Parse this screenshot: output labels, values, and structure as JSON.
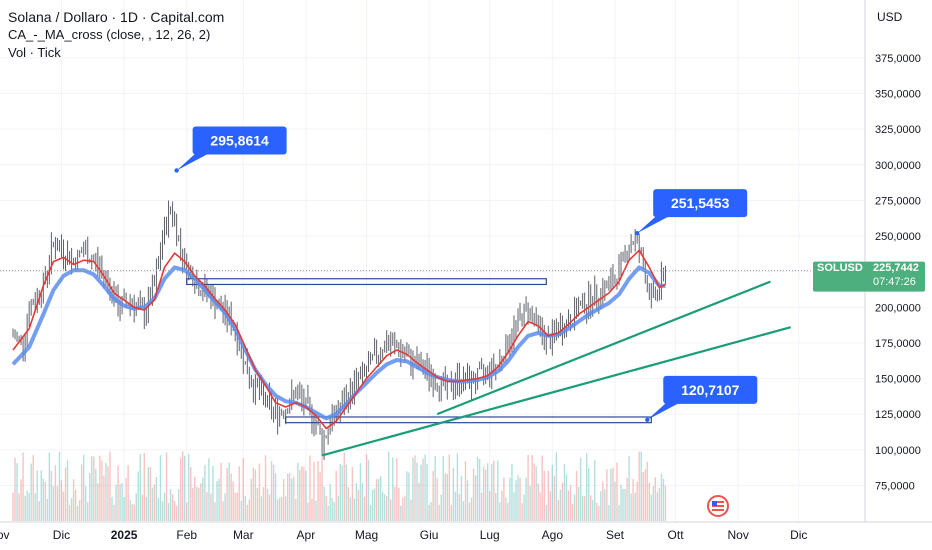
{
  "header": {
    "title": "Solana / Dollaro · 1D · Capital.com",
    "indicator": "CA_-_MA_cross (close, , 12, 26, 2)",
    "volume": "Vol · Tick",
    "currency": "USD"
  },
  "price_badge": {
    "symbol": "SOLUSD",
    "price": "225,7442",
    "countdown": "07:47:26"
  },
  "colors": {
    "up": "#26a69a",
    "down": "#ef5350",
    "fast_ma": "#e53935",
    "slow_ma": "#5b8def",
    "trend": "#1b9e77",
    "callout": "#2962ff",
    "zone": "#2a4a9a",
    "badge": "#4caf7d"
  },
  "chart_data": {
    "type": "line",
    "title": "Solana / Dollaro · 1D · Capital.com",
    "ylim": [
      50000,
      400000
    ],
    "y_ticks": [
      75000,
      100000,
      125000,
      150000,
      175000,
      200000,
      225000,
      250000,
      275000,
      300000,
      325000,
      350000,
      375000
    ],
    "y_tick_labels": [
      "75,0000",
      "100,0000",
      "125,0000",
      "150,0000",
      "175,0000",
      "200,0000",
      "225,0000",
      "250,0000",
      "275,0000",
      "300,0000",
      "325,0000",
      "350,0000",
      "375,0000"
    ],
    "x_tick_labels": [
      {
        "label": "Nov",
        "day": -7
      },
      {
        "label": "Dic",
        "day": 24
      },
      {
        "label": "2025",
        "day": 55
      },
      {
        "label": "Feb",
        "day": 86
      },
      {
        "label": "Mar",
        "day": 114
      },
      {
        "label": "Apr",
        "day": 145
      },
      {
        "label": "Mag",
        "day": 175
      },
      {
        "label": "Giu",
        "day": 206
      },
      {
        "label": "Lug",
        "day": 236
      },
      {
        "label": "Ago",
        "day": 267
      },
      {
        "label": "Set",
        "day": 298
      },
      {
        "label": "Ott",
        "day": 328
      },
      {
        "label": "Nov",
        "day": 359
      },
      {
        "label": "Dic",
        "day": 389
      }
    ],
    "price_path": [
      [
        0,
        180000
      ],
      [
        5,
        175000
      ],
      [
        8,
        200000
      ],
      [
        15,
        215000
      ],
      [
        20,
        245000
      ],
      [
        25,
        240000
      ],
      [
        30,
        232000
      ],
      [
        35,
        240000
      ],
      [
        42,
        230000
      ],
      [
        48,
        215000
      ],
      [
        52,
        200000
      ],
      [
        58,
        205000
      ],
      [
        65,
        195000
      ],
      [
        70,
        215000
      ],
      [
        75,
        255000
      ],
      [
        78,
        270000
      ],
      [
        80,
        260000
      ],
      [
        85,
        230000
      ],
      [
        88,
        225000
      ],
      [
        92,
        215000
      ],
      [
        97,
        210000
      ],
      [
        102,
        200000
      ],
      [
        108,
        190000
      ],
      [
        112,
        175000
      ],
      [
        115,
        160000
      ],
      [
        118,
        148000
      ],
      [
        122,
        140000
      ],
      [
        126,
        132000
      ],
      [
        130,
        125000
      ],
      [
        135,
        130000
      ],
      [
        140,
        140000
      ],
      [
        145,
        130000
      ],
      [
        150,
        120000
      ],
      [
        153,
        105000
      ],
      [
        158,
        122000
      ],
      [
        165,
        135000
      ],
      [
        170,
        148000
      ],
      [
        175,
        155000
      ],
      [
        180,
        168000
      ],
      [
        185,
        175000
      ],
      [
        190,
        172000
      ],
      [
        195,
        165000
      ],
      [
        200,
        160000
      ],
      [
        205,
        155000
      ],
      [
        210,
        148000
      ],
      [
        215,
        142000
      ],
      [
        220,
        150000
      ],
      [
        225,
        148000
      ],
      [
        230,
        150000
      ],
      [
        235,
        155000
      ],
      [
        240,
        160000
      ],
      [
        245,
        175000
      ],
      [
        250,
        190000
      ],
      [
        255,
        200000
      ],
      [
        260,
        185000
      ],
      [
        265,
        175000
      ],
      [
        270,
        185000
      ],
      [
        275,
        190000
      ],
      [
        280,
        200000
      ],
      [
        285,
        205000
      ],
      [
        290,
        210000
      ],
      [
        295,
        215000
      ],
      [
        300,
        225000
      ],
      [
        305,
        245000
      ],
      [
        308,
        248000
      ],
      [
        312,
        230000
      ],
      [
        316,
        205000
      ],
      [
        320,
        212000
      ],
      [
        323,
        226000
      ]
    ],
    "series": [
      {
        "name": "MA 12",
        "values": [
          [
            0,
            170000
          ],
          [
            8,
            185000
          ],
          [
            15,
            215000
          ],
          [
            20,
            232000
          ],
          [
            25,
            235000
          ],
          [
            30,
            230000
          ],
          [
            35,
            233000
          ],
          [
            40,
            232000
          ],
          [
            45,
            222000
          ],
          [
            50,
            210000
          ],
          [
            55,
            205000
          ],
          [
            60,
            200000
          ],
          [
            65,
            198000
          ],
          [
            70,
            205000
          ],
          [
            75,
            228000
          ],
          [
            80,
            238000
          ],
          [
            85,
            232000
          ],
          [
            90,
            222000
          ],
          [
            95,
            215000
          ],
          [
            100,
            206000
          ],
          [
            105,
            198000
          ],
          [
            110,
            188000
          ],
          [
            115,
            172000
          ],
          [
            120,
            156000
          ],
          [
            125,
            145000
          ],
          [
            130,
            133000
          ],
          [
            135,
            130000
          ],
          [
            140,
            133000
          ],
          [
            145,
            130000
          ],
          [
            150,
            124000
          ],
          [
            155,
            115000
          ],
          [
            160,
            120000
          ],
          [
            165,
            130000
          ],
          [
            170,
            140000
          ],
          [
            175,
            150000
          ],
          [
            180,
            158000
          ],
          [
            185,
            166000
          ],
          [
            190,
            170000
          ],
          [
            195,
            167000
          ],
          [
            200,
            161000
          ],
          [
            205,
            156000
          ],
          [
            210,
            151000
          ],
          [
            215,
            148000
          ],
          [
            220,
            148000
          ],
          [
            225,
            149000
          ],
          [
            230,
            150000
          ],
          [
            235,
            152000
          ],
          [
            240,
            158000
          ],
          [
            245,
            168000
          ],
          [
            250,
            180000
          ],
          [
            255,
            190000
          ],
          [
            260,
            187000
          ],
          [
            265,
            180000
          ],
          [
            270,
            182000
          ],
          [
            275,
            188000
          ],
          [
            280,
            195000
          ],
          [
            285,
            200000
          ],
          [
            290,
            205000
          ],
          [
            295,
            210000
          ],
          [
            300,
            218000
          ],
          [
            305,
            233000
          ],
          [
            310,
            240000
          ],
          [
            315,
            228000
          ],
          [
            320,
            214000
          ],
          [
            323,
            216000
          ]
        ]
      },
      {
        "name": "MA 26",
        "values": [
          [
            0,
            160000
          ],
          [
            8,
            172000
          ],
          [
            15,
            195000
          ],
          [
            20,
            212000
          ],
          [
            25,
            222000
          ],
          [
            30,
            226000
          ],
          [
            35,
            226000
          ],
          [
            40,
            223000
          ],
          [
            45,
            215000
          ],
          [
            50,
            206000
          ],
          [
            55,
            201000
          ],
          [
            60,
            199000
          ],
          [
            65,
            200000
          ],
          [
            70,
            206000
          ],
          [
            75,
            220000
          ],
          [
            80,
            228000
          ],
          [
            85,
            226000
          ],
          [
            90,
            220000
          ],
          [
            95,
            212000
          ],
          [
            100,
            204000
          ],
          [
            105,
            196000
          ],
          [
            110,
            185000
          ],
          [
            115,
            170000
          ],
          [
            120,
            156000
          ],
          [
            125,
            146000
          ],
          [
            130,
            138000
          ],
          [
            135,
            134000
          ],
          [
            140,
            133000
          ],
          [
            145,
            130000
          ],
          [
            150,
            126000
          ],
          [
            155,
            122000
          ],
          [
            160,
            125000
          ],
          [
            165,
            132000
          ],
          [
            170,
            140000
          ],
          [
            175,
            147000
          ],
          [
            180,
            154000
          ],
          [
            185,
            160000
          ],
          [
            190,
            163000
          ],
          [
            195,
            162000
          ],
          [
            200,
            158000
          ],
          [
            205,
            154000
          ],
          [
            210,
            151000
          ],
          [
            215,
            149000
          ],
          [
            220,
            148000
          ],
          [
            225,
            148000
          ],
          [
            230,
            149000
          ],
          [
            235,
            151000
          ],
          [
            240,
            155000
          ],
          [
            245,
            162000
          ],
          [
            250,
            172000
          ],
          [
            255,
            180000
          ],
          [
            260,
            182000
          ],
          [
            265,
            180000
          ],
          [
            270,
            181000
          ],
          [
            275,
            185000
          ],
          [
            280,
            190000
          ],
          [
            285,
            195000
          ],
          [
            290,
            199000
          ],
          [
            295,
            203000
          ],
          [
            300,
            209000
          ],
          [
            305,
            220000
          ],
          [
            310,
            228000
          ],
          [
            315,
            224000
          ],
          [
            320,
            215000
          ],
          [
            323,
            215000
          ]
        ]
      }
    ],
    "zones": [
      {
        "from_day": 86,
        "to_day": 264,
        "low": 216000,
        "high": 220000
      },
      {
        "from_day": 135,
        "to_day": 316,
        "low": 119000,
        "high": 123000
      }
    ],
    "trendlines": [
      {
        "from": [
          153,
          96000
        ],
        "to": [
          385,
          186000
        ]
      },
      {
        "from": [
          210,
          125000
        ],
        "to": [
          375,
          218000
        ]
      }
    ],
    "callouts": [
      {
        "label": "295,8614",
        "day": 81,
        "value": 296000,
        "placement": "upper-right"
      },
      {
        "label": "251,5453",
        "day": 309,
        "value": 252000,
        "placement": "upper-right"
      },
      {
        "label": "120,7107",
        "day": 314,
        "value": 121000,
        "placement": "upper-right"
      }
    ],
    "current_price": 225744
  }
}
